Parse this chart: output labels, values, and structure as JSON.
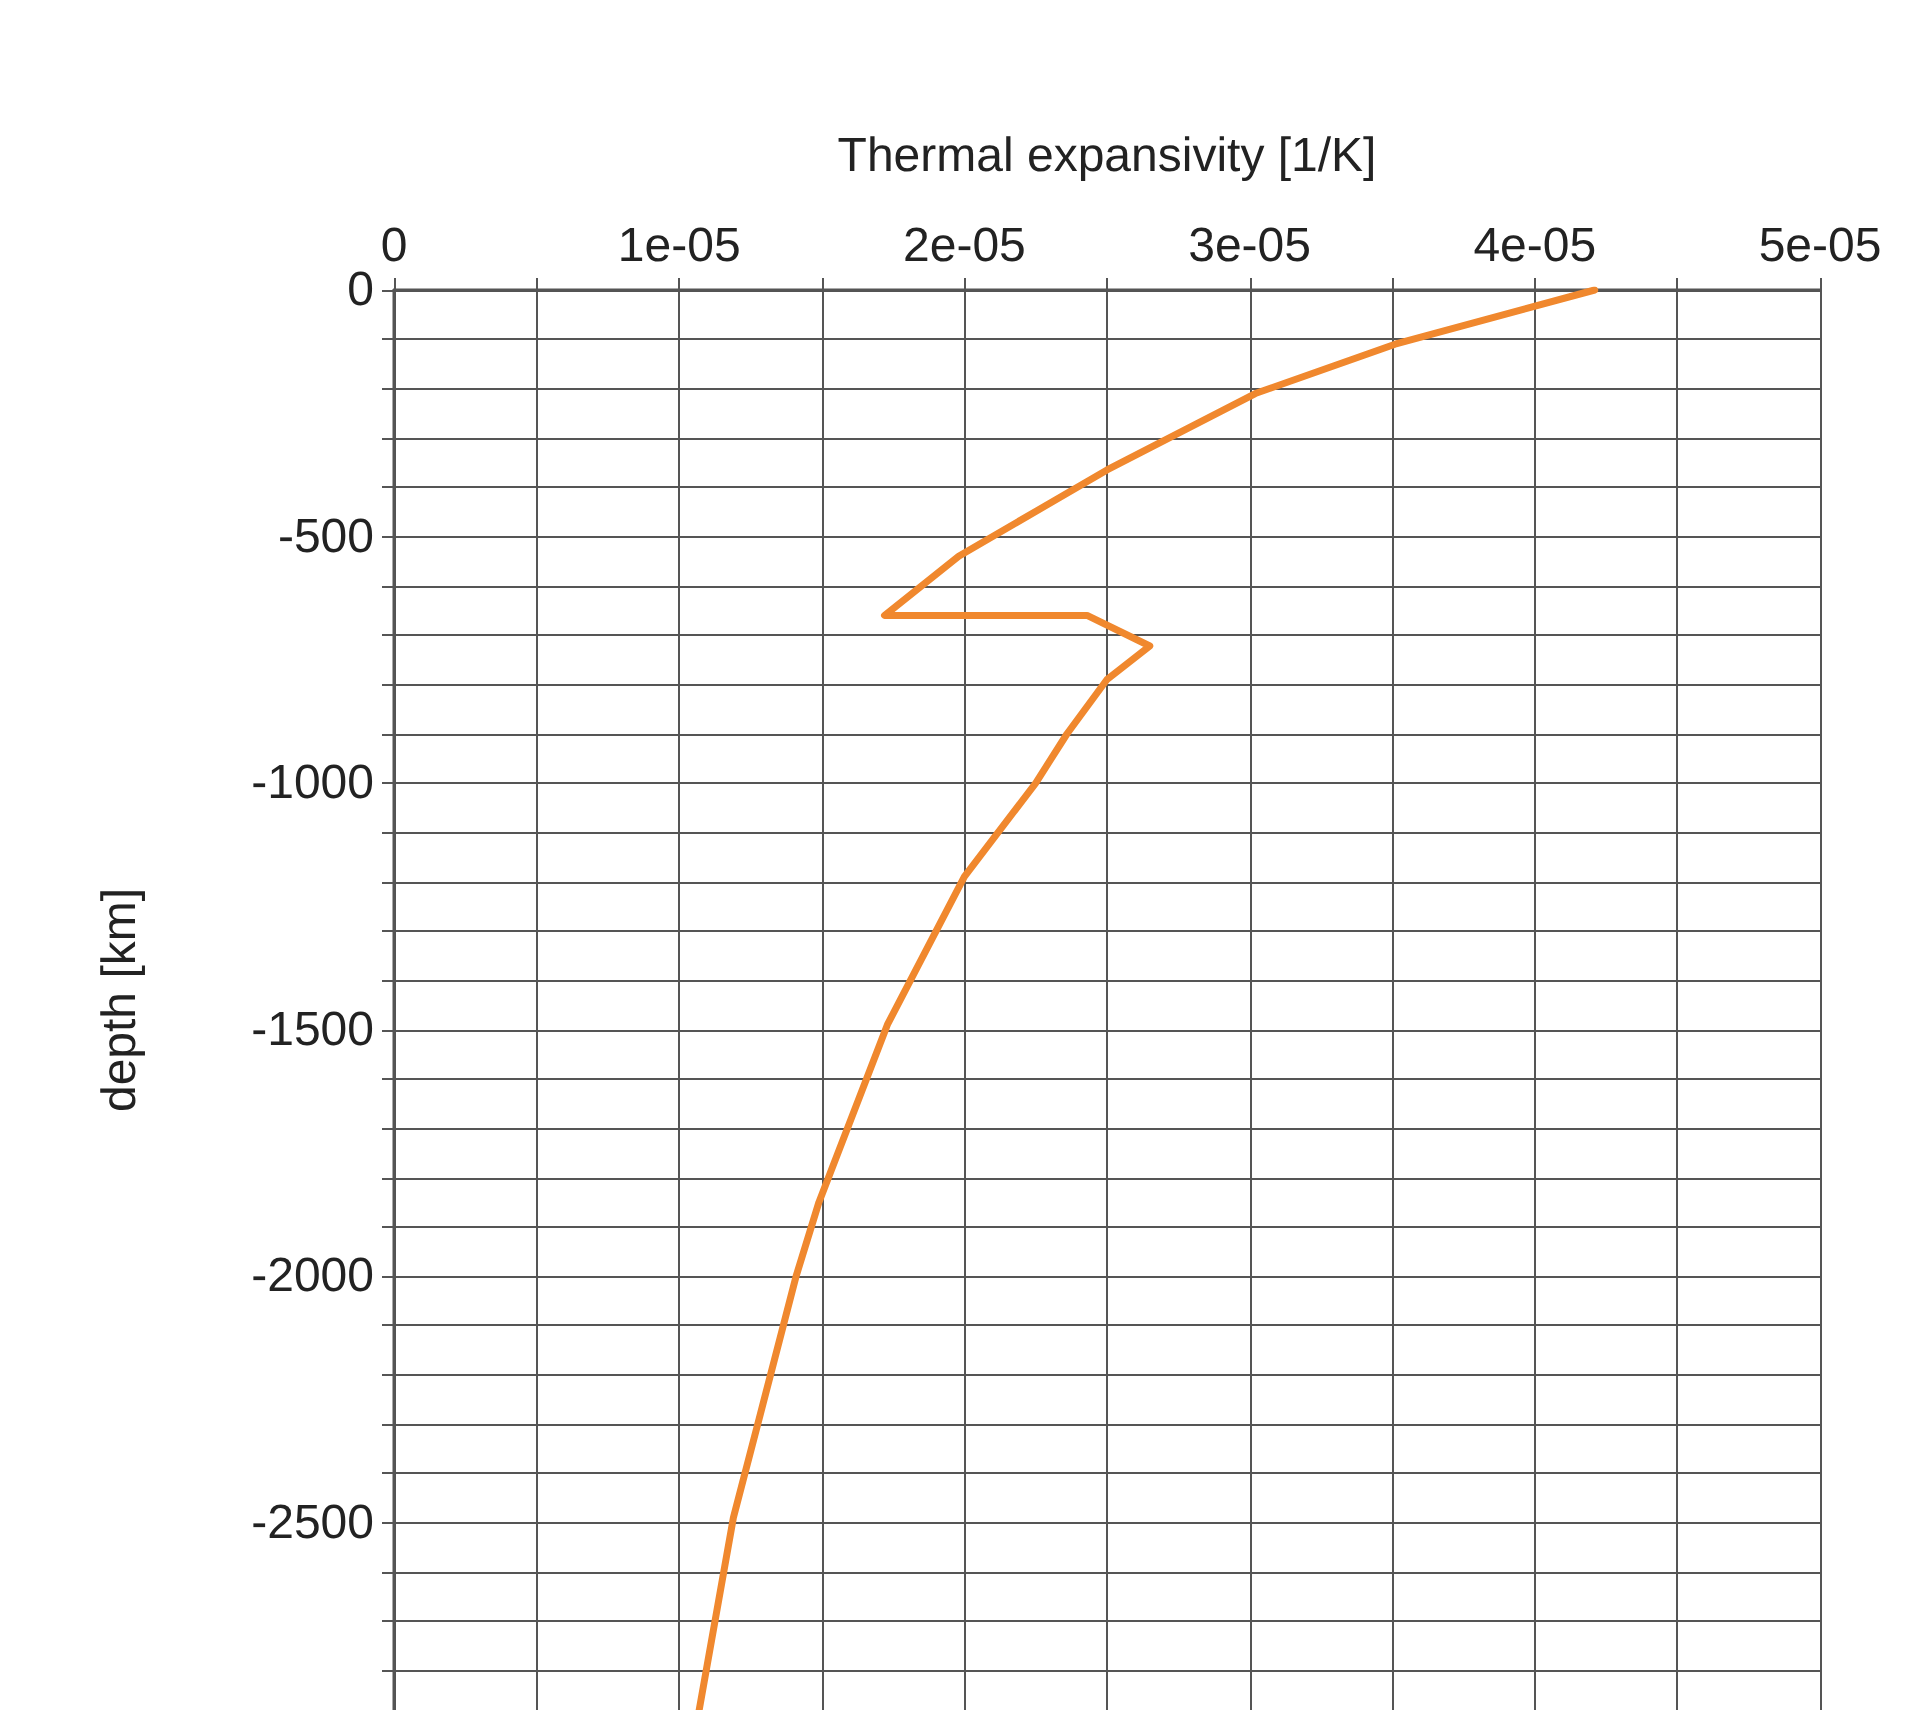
{
  "chart_data": {
    "type": "line",
    "xlabel": "Thermal expansivity [1/K]",
    "ylabel": "depth [km]",
    "xlim": [
      0,
      5e-05
    ],
    "xticks": [
      0,
      {
        "value": 5e-06,
        "label": null
      },
      {
        "value": 1e-05,
        "label": "1e-05"
      },
      {
        "value": 1.5e-05,
        "label": null
      },
      {
        "value": 2e-05,
        "label": "2e-05"
      },
      {
        "value": 2.5e-05,
        "label": null
      },
      {
        "value": 3e-05,
        "label": "3e-05"
      },
      {
        "value": 3.5e-05,
        "label": null
      },
      {
        "value": 4e-05,
        "label": "4e-05"
      },
      {
        "value": 4.5e-05,
        "label": null
      },
      {
        "value": 5e-05,
        "label": "5e-05"
      }
    ],
    "ylim": [
      -2880,
      0
    ],
    "yticks": [
      0,
      {
        "value": -100,
        "label": null
      },
      {
        "value": -200,
        "label": null
      },
      {
        "value": -300,
        "label": null
      },
      {
        "value": -400,
        "label": null
      },
      -500,
      {
        "value": -600,
        "label": null
      },
      {
        "value": -700,
        "label": null
      },
      {
        "value": -800,
        "label": null
      },
      {
        "value": -900,
        "label": null
      },
      -1000,
      {
        "value": -1100,
        "label": null
      },
      {
        "value": -1200,
        "label": null
      },
      {
        "value": -1300,
        "label": null
      },
      {
        "value": -1400,
        "label": null
      },
      -1500,
      {
        "value": -1600,
        "label": null
      },
      {
        "value": -1700,
        "label": null
      },
      {
        "value": -1800,
        "label": null
      },
      {
        "value": -1900,
        "label": null
      },
      -2000,
      {
        "value": -2100,
        "label": null
      },
      {
        "value": -2200,
        "label": null
      },
      {
        "value": -2300,
        "label": null
      },
      {
        "value": -2400,
        "label": null
      },
      -2500,
      {
        "value": -2600,
        "label": null
      },
      {
        "value": -2700,
        "label": null
      },
      {
        "value": -2800,
        "label": null
      }
    ],
    "grid": true,
    "marker": "none",
    "line_style": "solid",
    "series": [
      {
        "color": "#f0882e",
        "x": [
          4.21e-05,
          3.51e-05,
          3.02e-05,
          2.5e-05,
          1.98e-05,
          1.72e-05,
          2.43e-05,
          2.65e-05,
          2.5e-05,
          2.36e-05,
          2.25e-05,
          2e-05,
          1.73e-05,
          1.49e-05,
          1.41e-05,
          1.28e-05,
          1.19e-05,
          1.07e-05
        ],
        "values": [
          0,
          -110,
          -210,
          -365,
          -540,
          -660,
          -660,
          -722,
          -790,
          -900,
          -1000,
          -1190,
          -1490,
          -1850,
          -2000,
          -2290,
          -2490,
          -2880
        ]
      }
    ]
  }
}
